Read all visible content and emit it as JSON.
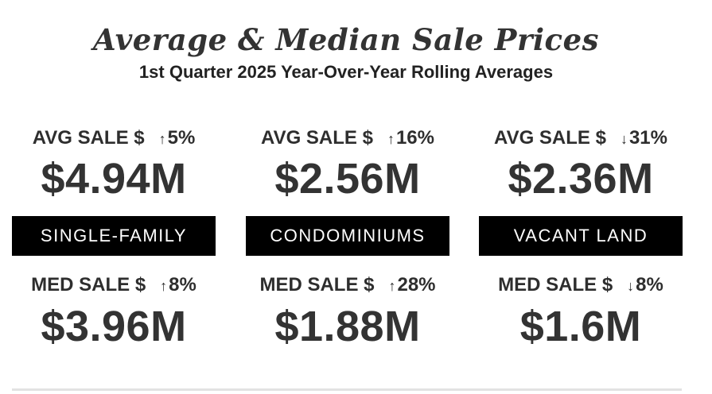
{
  "header": {
    "title": "Average & Median Sale Prices",
    "subtitle": "1st Quarter 2025 Year-Over-Year Rolling Averages"
  },
  "colors": {
    "text": "#333333",
    "banner_bg": "#000000",
    "banner_text": "#ffffff",
    "divider": "#e2e2e2"
  },
  "columns": [
    {
      "category": "SINGLE-FAMILY",
      "avg": {
        "label": "AVG SALE $",
        "arrow": "↑",
        "arrow_icon": "arrow-up-icon",
        "change": "5%",
        "value": "$4.94M"
      },
      "med": {
        "label": "MED SALE $",
        "arrow": "↑",
        "arrow_icon": "arrow-up-icon",
        "change": "8%",
        "value": "$3.96M"
      }
    },
    {
      "category": "CONDOMINIUMS",
      "avg": {
        "label": "AVG SALE $",
        "arrow": "↑",
        "arrow_icon": "arrow-up-icon",
        "change": "16%",
        "value": "$2.56M"
      },
      "med": {
        "label": "MED SALE $",
        "arrow": "↑",
        "arrow_icon": "arrow-up-icon",
        "change": "28%",
        "value": "$1.88M"
      }
    },
    {
      "category": "VACANT LAND",
      "avg": {
        "label": "AVG SALE $",
        "arrow": "↓",
        "arrow_icon": "arrow-down-icon",
        "change": "31%",
        "value": "$2.36M"
      },
      "med": {
        "label": "MED SALE $",
        "arrow": "↓",
        "arrow_icon": "arrow-down-icon",
        "change": "8%",
        "value": "$1.6M"
      }
    }
  ]
}
